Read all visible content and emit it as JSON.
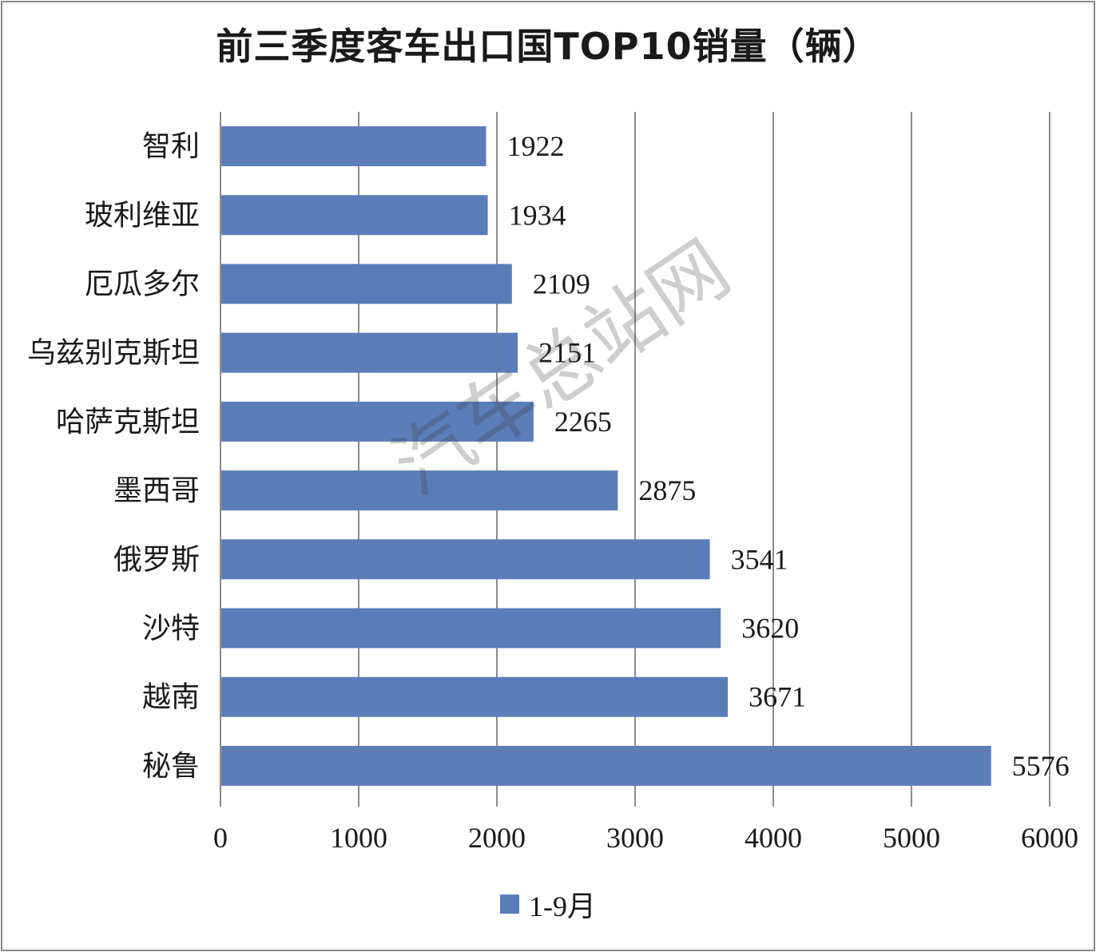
{
  "chart_data": {
    "type": "bar",
    "orientation": "horizontal",
    "title": "前三季度客车出口国TOP10销量（辆）",
    "categories": [
      "智利",
      "玻利维亚",
      "厄瓜多尔",
      "乌兹别克斯坦",
      "哈萨克斯坦",
      "墨西哥",
      "俄罗斯",
      "沙特",
      "越南",
      "秘鲁"
    ],
    "series": [
      {
        "name": "1-9月",
        "values": [
          1922,
          1934,
          2109,
          2151,
          2265,
          2875,
          3541,
          3620,
          3671,
          5576
        ]
      }
    ],
    "xlim": [
      0,
      6000
    ],
    "xticks": [
      0,
      1000,
      2000,
      3000,
      4000,
      5000,
      6000
    ],
    "grid": "vertical",
    "legend_position": "bottom",
    "bar_color": "#5b7db8"
  },
  "watermark": "汽车总站网"
}
